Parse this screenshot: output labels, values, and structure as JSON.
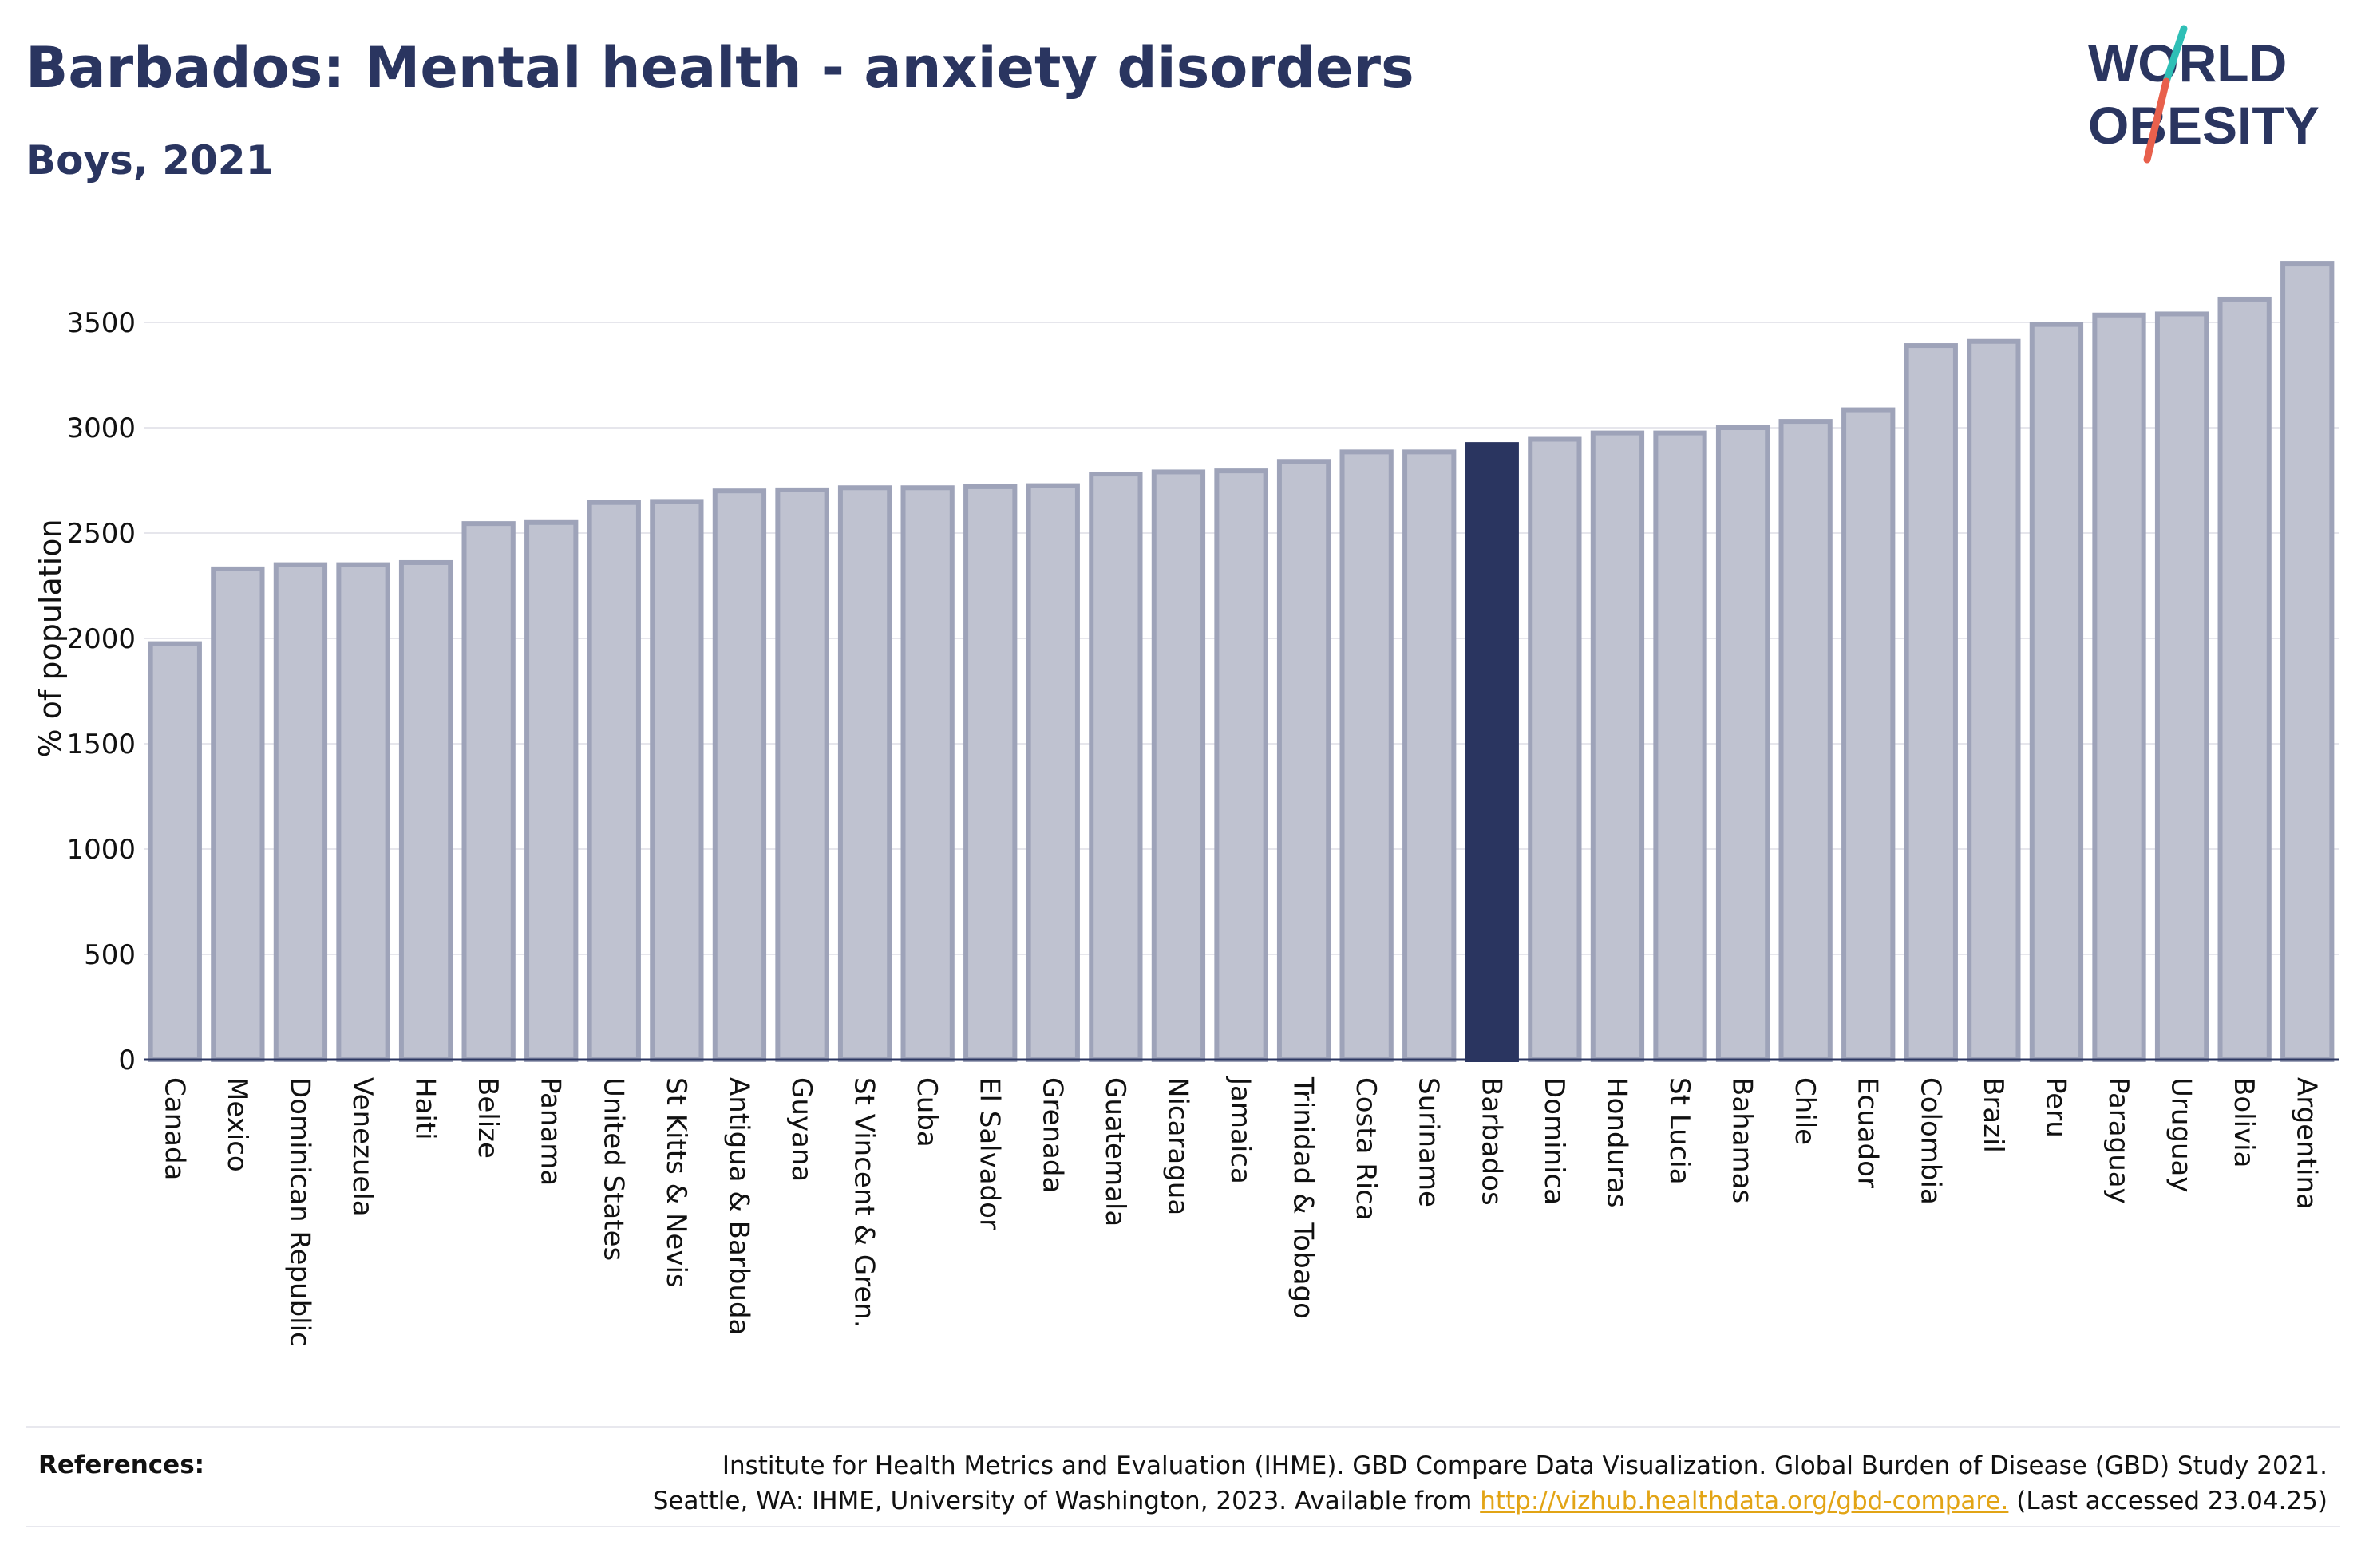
{
  "header": {
    "title": "Barbados: Mental health - anxiety disorders",
    "subtitle": "Boys, 2021"
  },
  "logo": {
    "line1": "WORLD",
    "line2": "OBESITY",
    "colors": {
      "text": "#2a3560",
      "slash_teal": "#2fbfb6",
      "slash_red": "#e8604c"
    }
  },
  "colors": {
    "bar_fill": "#bfc2d0",
    "bar_stroke": "#9ea3b9",
    "highlight": "#2a3560",
    "grid": "#e6e6ec",
    "axis": "#2a3560"
  },
  "chart_data": {
    "type": "bar",
    "title": "Barbados: Mental health - anxiety disorders",
    "subtitle": "Boys, 2021",
    "ylabel": "% of population",
    "xlabel": "",
    "ylim": [
      0,
      3800
    ],
    "yticks": [
      0,
      500,
      1000,
      1500,
      2000,
      2500,
      3000,
      3500
    ],
    "grid": true,
    "highlight": "Barbados",
    "categories": [
      "Canada",
      "Mexico",
      "Dominican Republic",
      "Venezuela",
      "Haiti",
      "Belize",
      "Panama",
      "United States",
      "St Kitts & Nevis",
      "Antigua & Barbuda",
      "Guyana",
      "St Vincent & Gren.",
      "Cuba",
      "El Salvador",
      "Grenada",
      "Guatemala",
      "Nicaragua",
      "Jamaica",
      "Trinidad & Tobago",
      "Costa Rica",
      "Suriname",
      "Barbados",
      "Dominica",
      "Honduras",
      "St Lucia",
      "Bahamas",
      "Chile",
      "Ecuador",
      "Colombia",
      "Brazil",
      "Peru",
      "Paraguay",
      "Uruguay",
      "Bolivia",
      "Argentina"
    ],
    "values": [
      1975,
      2330,
      2350,
      2350,
      2360,
      2545,
      2550,
      2645,
      2650,
      2700,
      2705,
      2715,
      2715,
      2720,
      2725,
      2780,
      2790,
      2795,
      2840,
      2885,
      2885,
      2920,
      2945,
      2975,
      2975,
      3000,
      3030,
      3085,
      3390,
      3410,
      3490,
      3535,
      3540,
      3610,
      3780
    ]
  },
  "references": {
    "label": "References:",
    "line1": "Institute for Health Metrics and Evaluation (IHME). GBD Compare Data Visualization. Global Burden of Disease (GBD) Study 2021.",
    "line2_prefix": "Seattle, WA: IHME, University of Washington, 2023. Available from ",
    "link": "http://vizhub.healthdata.org/gbd-compare.",
    "line2_suffix": " (Last accessed 23.04.25)"
  }
}
